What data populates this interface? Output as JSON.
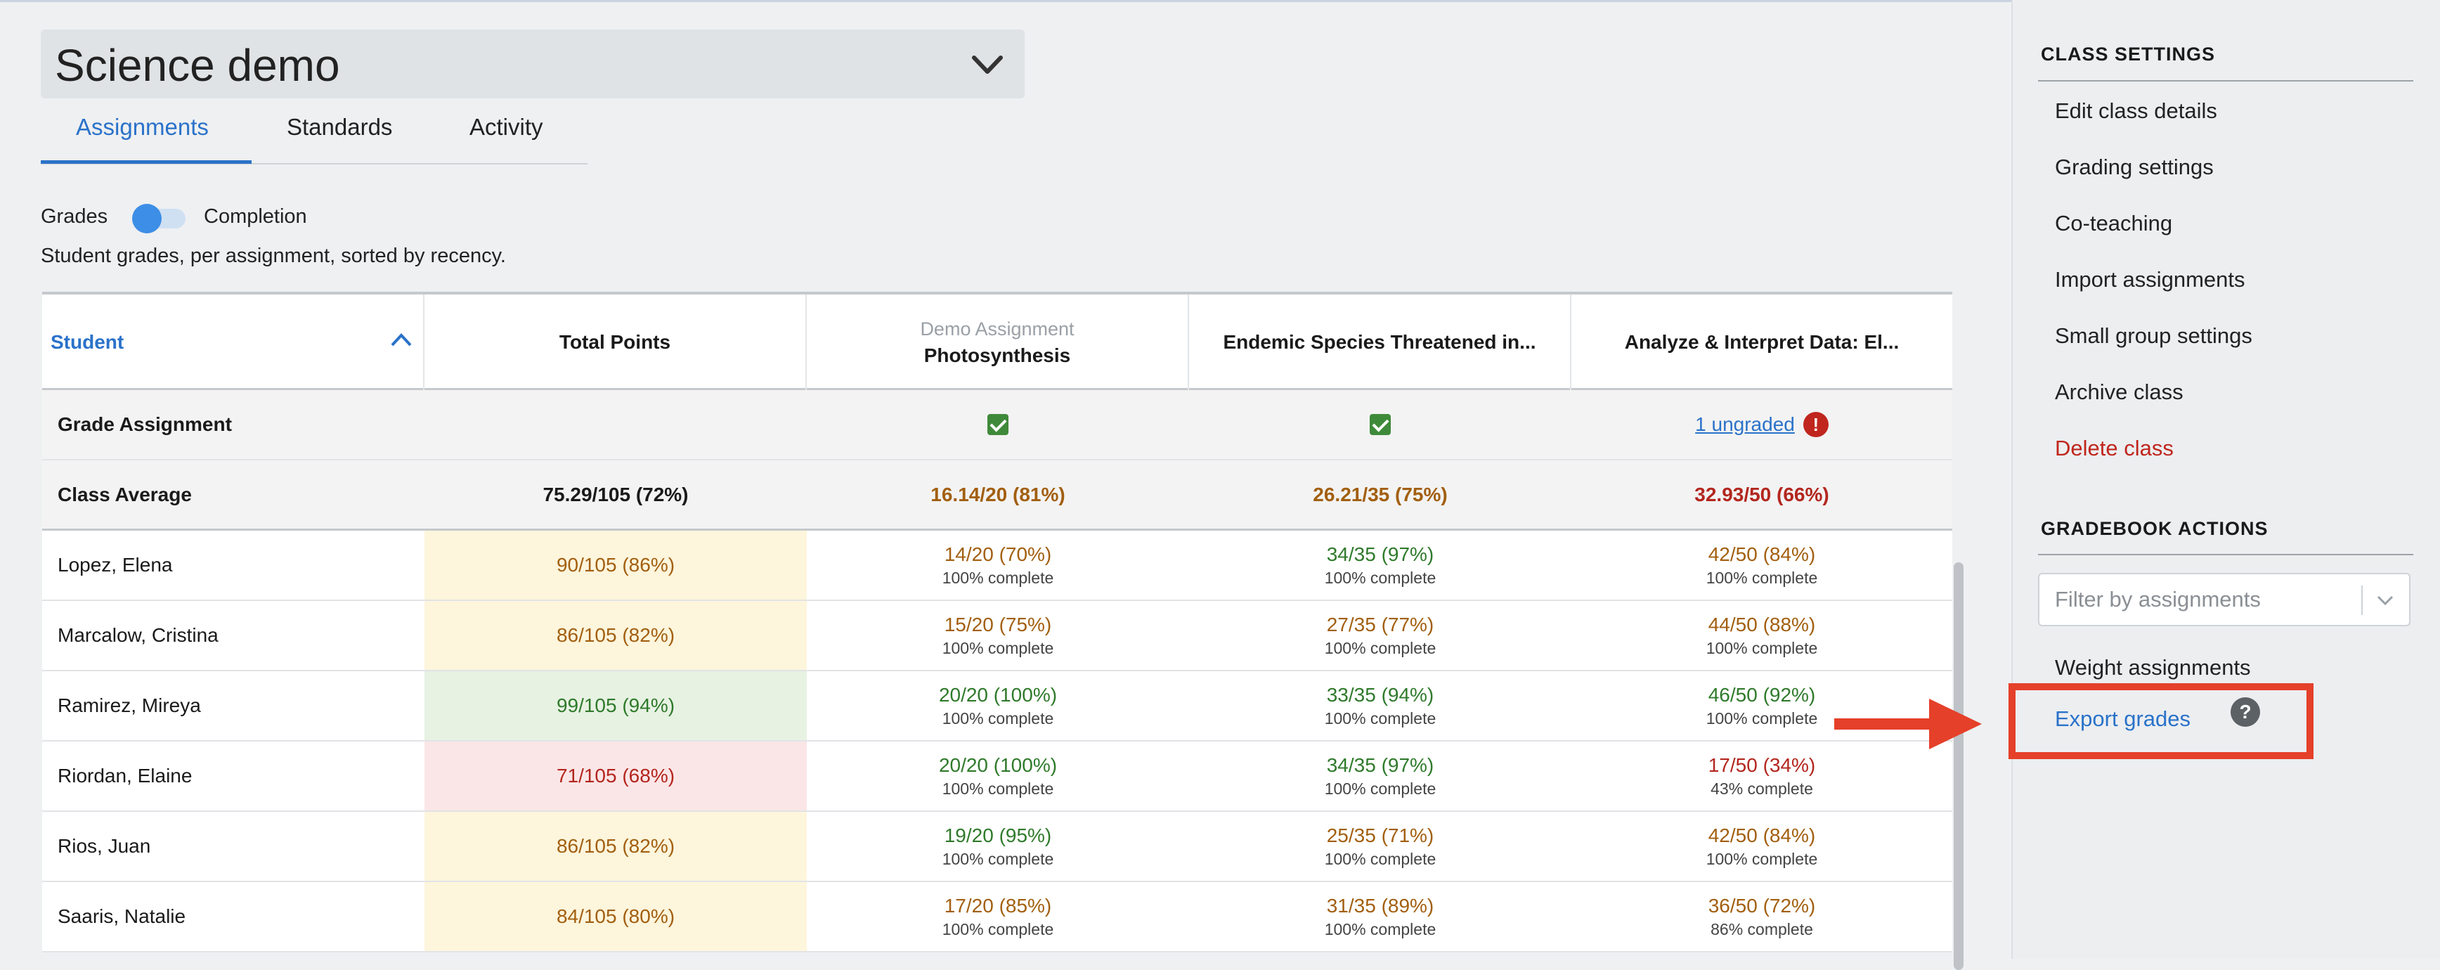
{
  "class_selector": {
    "title": "Science demo"
  },
  "tabs": [
    {
      "label": "Assignments"
    },
    {
      "label": "Standards"
    },
    {
      "label": "Activity"
    }
  ],
  "toggle": {
    "left_label": "Grades",
    "right_label": "Completion"
  },
  "subtitle": "Student grades, per assignment, sorted by recency.",
  "table": {
    "headers": {
      "student": "Student",
      "total": "Total Points",
      "a1_tag": "Demo Assignment",
      "a1": "Photosynthesis",
      "a2": "Endemic Species Threatened in...",
      "a3": "Analyze & Interpret Data: El..."
    },
    "grade_row": {
      "label": "Grade Assignment",
      "a3_link": "1 ungraded",
      "a3_alert": "!"
    },
    "average_row": {
      "label": "Class Average",
      "total": "75.29/105 (72%)",
      "a1": "16.14/20 (81%)",
      "a2": "26.21/35 (75%)",
      "a3": "32.93/50 (66%)"
    },
    "students": [
      {
        "name": "Lopez, Elena",
        "total": "90/105 (86%)",
        "a1": "14/20 (70%)",
        "a1c": "100% complete",
        "a2": "34/35 (97%)",
        "a2c": "100% complete",
        "a3": "42/50 (84%)",
        "a3c": "100% complete"
      },
      {
        "name": "Marcalow, Cristina",
        "total": "86/105 (82%)",
        "a1": "15/20 (75%)",
        "a1c": "100% complete",
        "a2": "27/35 (77%)",
        "a2c": "100% complete",
        "a3": "44/50 (88%)",
        "a3c": "100% complete"
      },
      {
        "name": "Ramirez, Mireya",
        "total": "99/105 (94%)",
        "a1": "20/20 (100%)",
        "a1c": "100% complete",
        "a2": "33/35 (94%)",
        "a2c": "100% complete",
        "a3": "46/50 (92%)",
        "a3c": "100% complete"
      },
      {
        "name": "Riordan, Elaine",
        "total": "71/105 (68%)",
        "a1": "20/20 (100%)",
        "a1c": "100% complete",
        "a2": "34/35 (97%)",
        "a2c": "100% complete",
        "a3": "17/50 (34%)",
        "a3c": "43% complete"
      },
      {
        "name": "Rios, Juan",
        "total": "86/105 (82%)",
        "a1": "19/20 (95%)",
        "a1c": "100% complete",
        "a2": "25/35 (71%)",
        "a2c": "100% complete",
        "a3": "42/50 (84%)",
        "a3c": "100% complete"
      },
      {
        "name": "Saaris, Natalie",
        "total": "84/105 (80%)",
        "a1": "17/20 (85%)",
        "a1c": "100% complete",
        "a2": "31/35 (89%)",
        "a2c": "100% complete",
        "a3": "36/50 (72%)",
        "a3c": "86% complete"
      }
    ]
  },
  "panel": {
    "class_settings_title": "CLASS SETTINGS",
    "class_settings": [
      "Edit class details",
      "Grading settings",
      "Co-teaching",
      "Import assignments",
      "Small group settings",
      "Archive class"
    ],
    "delete_class": "Delete class",
    "gradebook_title": "GRADEBOOK ACTIONS",
    "filter_placeholder": "Filter by assignments",
    "weight": "Weight assignments",
    "export": "Export grades",
    "help": "?"
  },
  "colors": {
    "accent": "#2a72c9",
    "annotation": "#e5402a",
    "good": "#2f7a2b",
    "warn": "#a25f0f",
    "bad": "#b3261e"
  }
}
